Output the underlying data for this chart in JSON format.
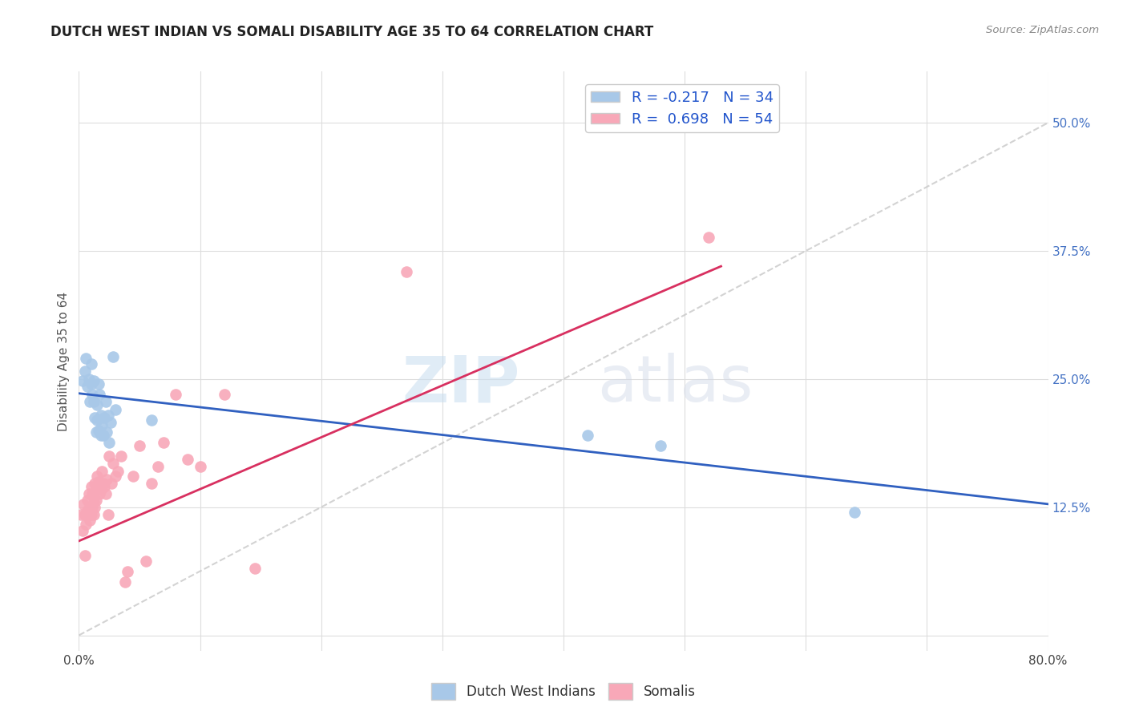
{
  "title": "DUTCH WEST INDIAN VS SOMALI DISABILITY AGE 35 TO 64 CORRELATION CHART",
  "source": "Source: ZipAtlas.com",
  "ylabel": "Disability Age 35 to 64",
  "xlim": [
    0.0,
    0.8
  ],
  "ylim": [
    -0.015,
    0.55
  ],
  "yticks": [
    0.0,
    0.125,
    0.25,
    0.375,
    0.5
  ],
  "ytick_labels": [
    "",
    "12.5%",
    "25.0%",
    "37.5%",
    "50.0%"
  ],
  "xticks": [
    0.0,
    0.1,
    0.2,
    0.3,
    0.4,
    0.5,
    0.6,
    0.7,
    0.8
  ],
  "xtick_labels": [
    "0.0%",
    "",
    "",
    "",
    "",
    "",
    "",
    "",
    "80.0%"
  ],
  "legend1_R": "-0.217",
  "legend1_N": "34",
  "legend2_R": "0.698",
  "legend2_N": "54",
  "blue_color": "#a8c8e8",
  "pink_color": "#f8a8b8",
  "blue_line_color": "#3060c0",
  "pink_line_color": "#d83060",
  "diag_color": "#c8c8c8",
  "watermark_zip": "ZIP",
  "watermark_atlas": "atlas",
  "blue_scatter_x": [
    0.003,
    0.005,
    0.006,
    0.007,
    0.008,
    0.009,
    0.01,
    0.01,
    0.011,
    0.012,
    0.012,
    0.013,
    0.014,
    0.015,
    0.015,
    0.016,
    0.016,
    0.017,
    0.018,
    0.018,
    0.019,
    0.02,
    0.021,
    0.022,
    0.023,
    0.024,
    0.025,
    0.026,
    0.028,
    0.03,
    0.06,
    0.42,
    0.48,
    0.64
  ],
  "blue_scatter_y": [
    0.248,
    0.258,
    0.27,
    0.243,
    0.25,
    0.228,
    0.245,
    0.265,
    0.235,
    0.248,
    0.228,
    0.212,
    0.198,
    0.225,
    0.21,
    0.245,
    0.2,
    0.235,
    0.195,
    0.215,
    0.205,
    0.195,
    0.212,
    0.228,
    0.198,
    0.215,
    0.188,
    0.208,
    0.272,
    0.22,
    0.21,
    0.195,
    0.185,
    0.12
  ],
  "pink_scatter_x": [
    0.002,
    0.003,
    0.004,
    0.005,
    0.005,
    0.006,
    0.006,
    0.007,
    0.007,
    0.008,
    0.008,
    0.009,
    0.009,
    0.01,
    0.01,
    0.011,
    0.011,
    0.012,
    0.012,
    0.013,
    0.013,
    0.014,
    0.015,
    0.015,
    0.016,
    0.017,
    0.018,
    0.019,
    0.02,
    0.021,
    0.022,
    0.023,
    0.024,
    0.025,
    0.027,
    0.028,
    0.03,
    0.032,
    0.035,
    0.038,
    0.04,
    0.045,
    0.05,
    0.055,
    0.06,
    0.065,
    0.07,
    0.08,
    0.09,
    0.1,
    0.12,
    0.145,
    0.27,
    0.52
  ],
  "pink_scatter_y": [
    0.118,
    0.102,
    0.128,
    0.118,
    0.078,
    0.118,
    0.108,
    0.122,
    0.132,
    0.118,
    0.138,
    0.112,
    0.125,
    0.118,
    0.145,
    0.125,
    0.138,
    0.13,
    0.118,
    0.125,
    0.148,
    0.132,
    0.155,
    0.142,
    0.15,
    0.138,
    0.142,
    0.16,
    0.148,
    0.145,
    0.138,
    0.152,
    0.118,
    0.175,
    0.148,
    0.168,
    0.155,
    0.16,
    0.175,
    0.052,
    0.062,
    0.155,
    0.185,
    0.072,
    0.148,
    0.165,
    0.188,
    0.235,
    0.172,
    0.165,
    0.235,
    0.065,
    0.355,
    0.388
  ],
  "background_color": "#ffffff",
  "grid_color": "#dddddd"
}
